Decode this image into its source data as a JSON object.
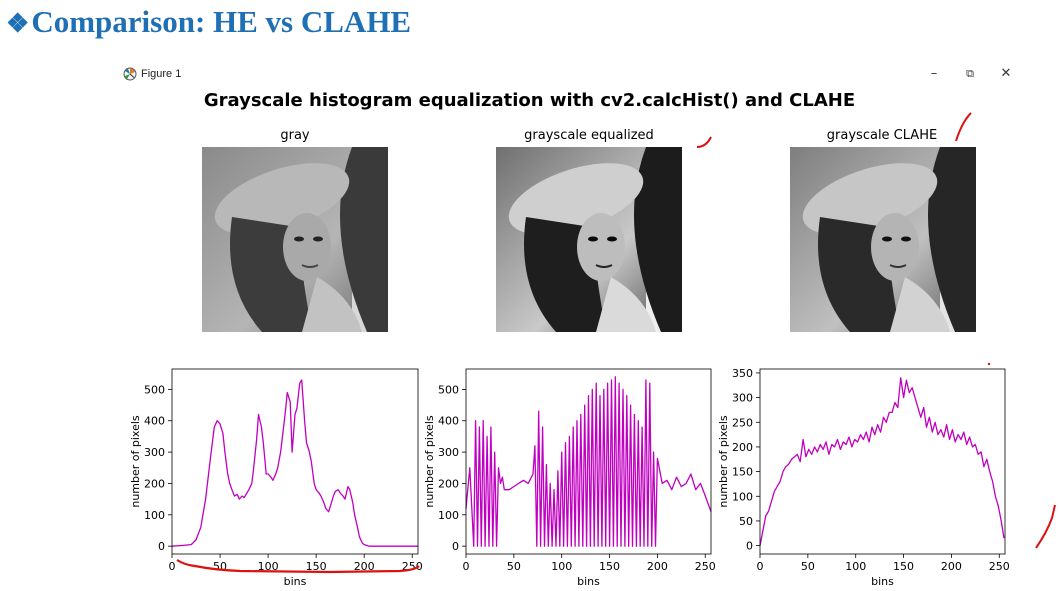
{
  "slide": {
    "bullet": "❖",
    "title": "Comparison: HE vs CLAHE"
  },
  "window": {
    "title": "Figure 1",
    "controls": {
      "minimize": "–",
      "restore": "⧉",
      "close": "✕"
    },
    "icon": "matplotlib-figure-icon"
  },
  "figure": {
    "suptitle": "Grayscale histogram equalization with cv2.calcHist() and CLAHE",
    "images": [
      {
        "title": "gray"
      },
      {
        "title": "grayscale equalized"
      },
      {
        "title": "grayscale CLAHE"
      }
    ]
  },
  "chart_data": [
    {
      "type": "line",
      "color": "#c000c0",
      "xlabel": "bins",
      "ylabel": "number of pixels",
      "xlim": [
        0,
        256
      ],
      "ylim": [
        -25,
        565
      ],
      "xticks": [
        0,
        50,
        100,
        150,
        200,
        250
      ],
      "yticks": [
        0,
        100,
        200,
        300,
        400,
        500
      ],
      "x": [
        0,
        10,
        20,
        25,
        30,
        35,
        40,
        44,
        47,
        50,
        53,
        55,
        58,
        60,
        63,
        65,
        68,
        70,
        73,
        75,
        78,
        80,
        83,
        85,
        88,
        90,
        93,
        95,
        98,
        100,
        103,
        105,
        108,
        110,
        113,
        115,
        118,
        120,
        123,
        125,
        128,
        130,
        133,
        135,
        138,
        140,
        143,
        145,
        148,
        150,
        153,
        155,
        158,
        160,
        163,
        165,
        168,
        170,
        173,
        175,
        178,
        180,
        183,
        185,
        188,
        190,
        193,
        195,
        198,
        200,
        203,
        205,
        208,
        210,
        213,
        215,
        218,
        220,
        225,
        230,
        240,
        256
      ],
      "y": [
        0,
        2,
        5,
        20,
        60,
        150,
        280,
        380,
        400,
        390,
        360,
        300,
        230,
        200,
        175,
        160,
        165,
        150,
        160,
        155,
        170,
        180,
        200,
        250,
        340,
        420,
        380,
        330,
        230,
        230,
        220,
        210,
        230,
        250,
        300,
        350,
        430,
        490,
        460,
        300,
        420,
        440,
        520,
        530,
        400,
        330,
        300,
        270,
        200,
        180,
        170,
        160,
        140,
        120,
        110,
        130,
        160,
        175,
        180,
        170,
        160,
        150,
        190,
        180,
        140,
        100,
        60,
        30,
        10,
        5,
        2,
        0,
        0,
        0,
        0,
        0,
        0,
        0,
        0,
        0,
        0,
        0
      ]
    },
    {
      "type": "line",
      "color": "#c000c0",
      "xlabel": "bins",
      "ylabel": "number of pixels",
      "xlim": [
        0,
        256
      ],
      "ylim": [
        -25,
        565
      ],
      "xticks": [
        0,
        50,
        100,
        150,
        200,
        250
      ],
      "yticks": [
        0,
        100,
        200,
        300,
        400,
        500
      ],
      "x": [
        0,
        4,
        8,
        10,
        12,
        14,
        16,
        18,
        20,
        22,
        24,
        26,
        28,
        30,
        32,
        34,
        36,
        38,
        40,
        45,
        50,
        55,
        60,
        65,
        70,
        72,
        74,
        76,
        78,
        80,
        82,
        84,
        86,
        88,
        90,
        92,
        94,
        96,
        98,
        100,
        102,
        104,
        106,
        108,
        110,
        112,
        114,
        116,
        118,
        120,
        122,
        124,
        126,
        128,
        130,
        132,
        134,
        136,
        138,
        140,
        142,
        144,
        146,
        148,
        150,
        152,
        154,
        156,
        158,
        160,
        162,
        164,
        166,
        168,
        170,
        172,
        174,
        176,
        178,
        180,
        182,
        184,
        186,
        188,
        190,
        192,
        194,
        196,
        198,
        200,
        205,
        210,
        215,
        220,
        225,
        230,
        235,
        240,
        245,
        250,
        256
      ],
      "y": [
        120,
        250,
        0,
        400,
        0,
        380,
        0,
        400,
        0,
        350,
        0,
        380,
        0,
        300,
        0,
        250,
        200,
        220,
        180,
        180,
        190,
        200,
        210,
        200,
        230,
        320,
        0,
        430,
        0,
        380,
        0,
        260,
        0,
        200,
        0,
        180,
        0,
        240,
        0,
        300,
        0,
        330,
        0,
        350,
        0,
        380,
        0,
        400,
        0,
        420,
        0,
        450,
        0,
        480,
        0,
        500,
        0,
        520,
        0,
        480,
        0,
        500,
        0,
        520,
        0,
        530,
        0,
        540,
        0,
        520,
        0,
        500,
        0,
        480,
        0,
        450,
        0,
        420,
        0,
        400,
        0,
        380,
        0,
        530,
        0,
        520,
        0,
        300,
        0,
        280,
        200,
        210,
        180,
        220,
        190,
        200,
        230,
        180,
        200,
        160,
        110
      ]
    },
    {
      "type": "line",
      "color": "#c000c0",
      "xlabel": "bins",
      "ylabel": "number of pixels",
      "xlim": [
        0,
        256
      ],
      "ylim": [
        -17,
        358
      ],
      "xticks": [
        0,
        50,
        100,
        150,
        200,
        250
      ],
      "yticks": [
        0,
        50,
        100,
        150,
        200,
        250,
        300,
        350
      ],
      "x": [
        0,
        3,
        6,
        9,
        12,
        15,
        18,
        21,
        24,
        27,
        30,
        33,
        36,
        39,
        42,
        45,
        48,
        51,
        54,
        57,
        60,
        63,
        66,
        69,
        72,
        75,
        78,
        81,
        84,
        87,
        90,
        93,
        96,
        99,
        102,
        105,
        108,
        111,
        114,
        117,
        120,
        123,
        126,
        129,
        132,
        135,
        138,
        141,
        144,
        147,
        150,
        153,
        156,
        159,
        162,
        165,
        168,
        171,
        174,
        177,
        180,
        183,
        186,
        189,
        192,
        195,
        198,
        201,
        204,
        207,
        210,
        213,
        216,
        219,
        222,
        225,
        228,
        231,
        234,
        237,
        240,
        243,
        246,
        249,
        252,
        255
      ],
      "y": [
        0,
        30,
        60,
        70,
        90,
        110,
        120,
        130,
        150,
        160,
        165,
        175,
        180,
        185,
        170,
        215,
        180,
        195,
        185,
        200,
        190,
        205,
        195,
        210,
        185,
        205,
        200,
        215,
        195,
        210,
        205,
        220,
        200,
        215,
        210,
        225,
        215,
        230,
        210,
        240,
        225,
        245,
        230,
        260,
        250,
        270,
        270,
        290,
        280,
        340,
        300,
        335,
        310,
        320,
        300,
        280,
        260,
        280,
        240,
        260,
        230,
        250,
        225,
        235,
        220,
        245,
        215,
        235,
        210,
        225,
        215,
        230,
        205,
        220,
        200,
        205,
        185,
        190,
        160,
        175,
        150,
        130,
        100,
        80,
        50,
        15
      ]
    }
  ]
}
